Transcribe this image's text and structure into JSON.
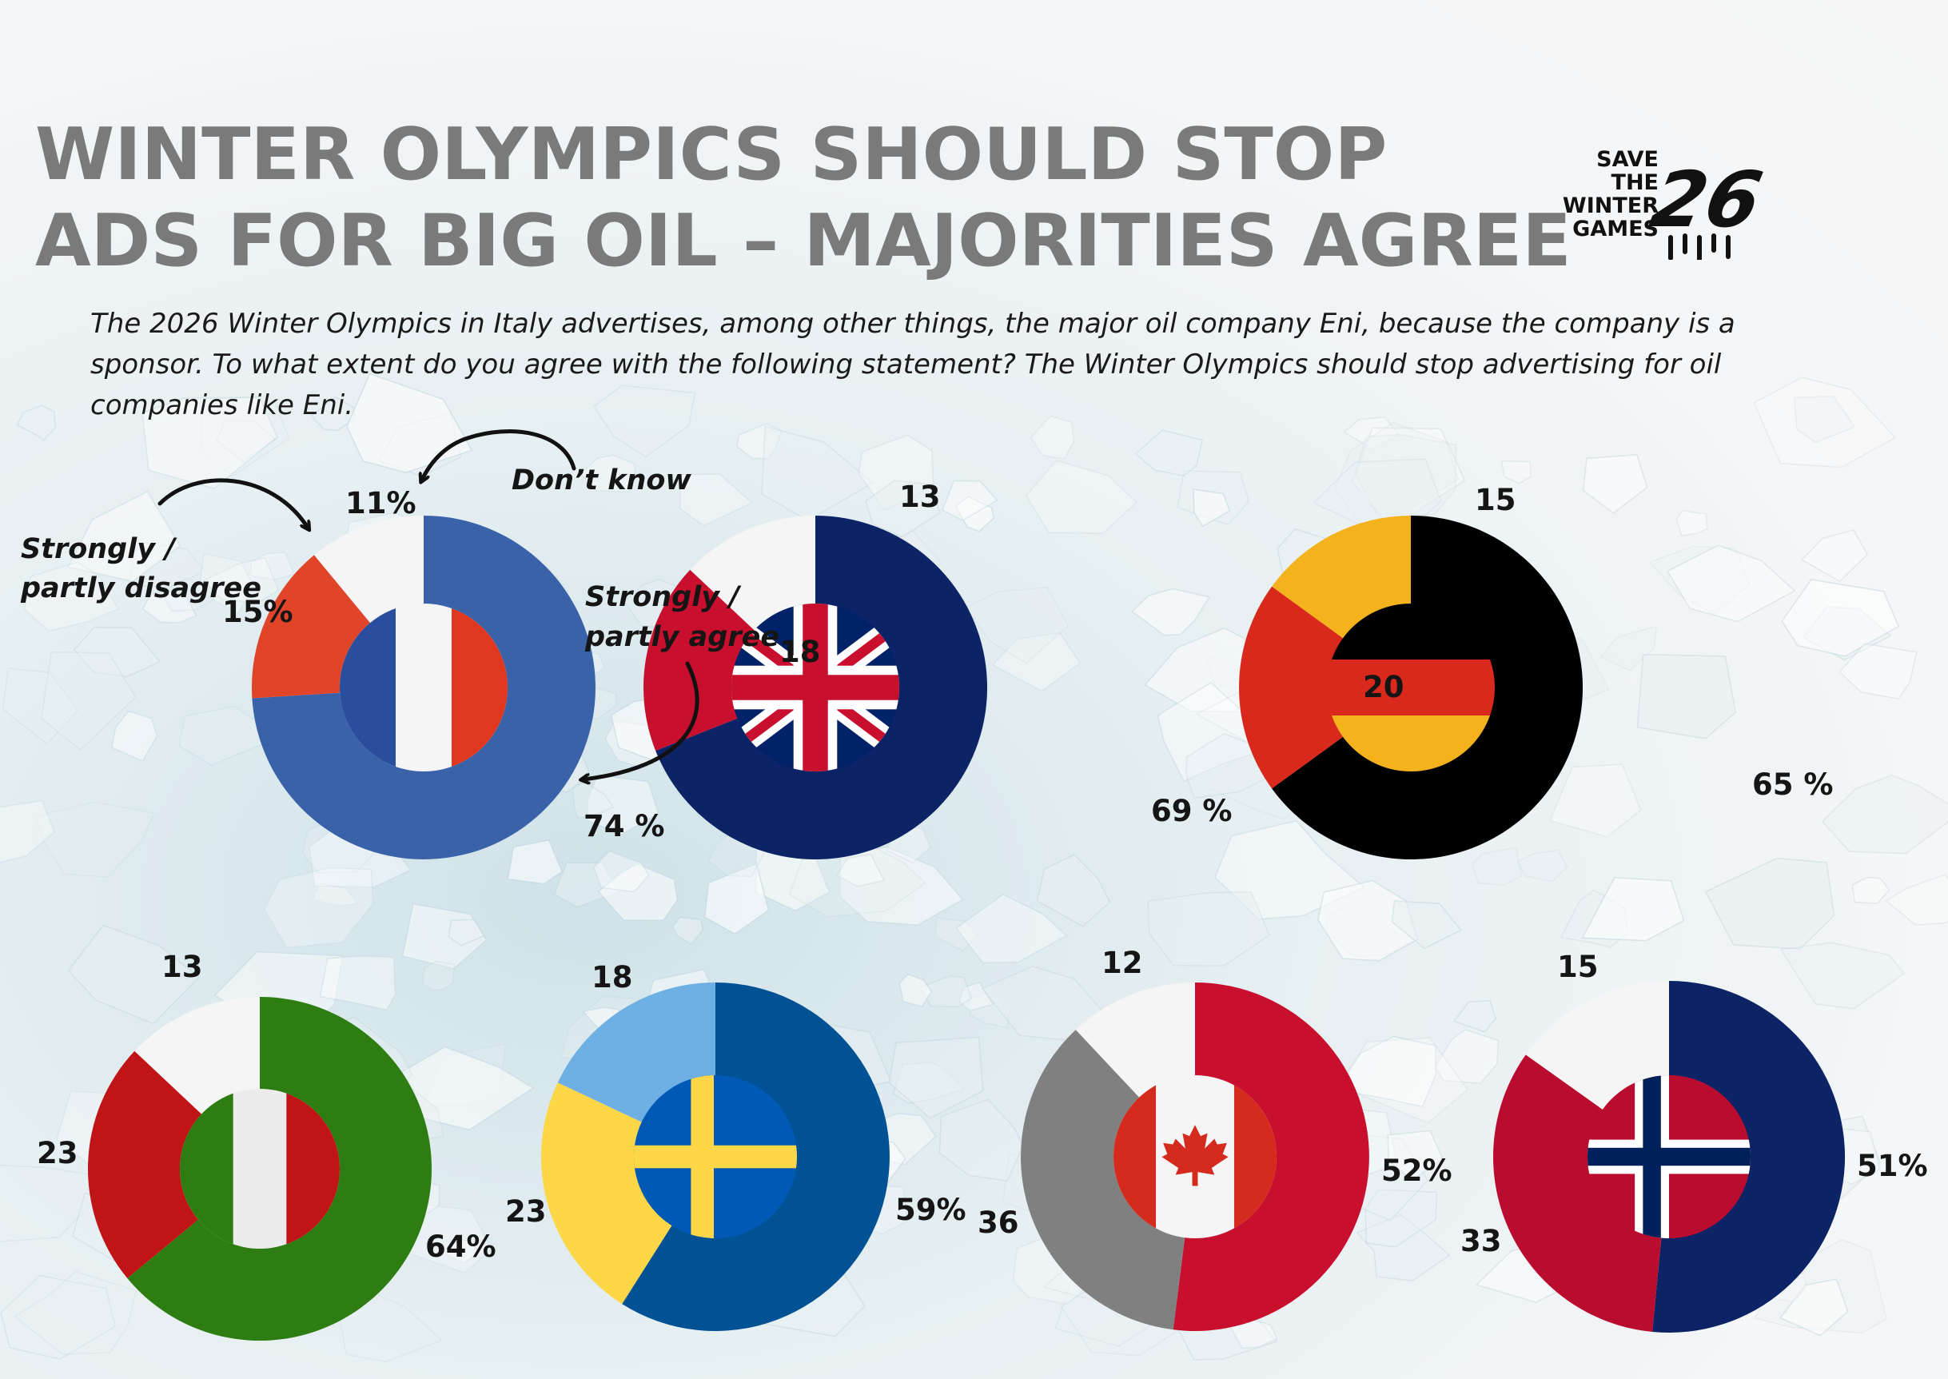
{
  "title_lines": [
    "WINTER OLYMPICS SHOULD STOP",
    "ADS FOR BIG OIL – MAJORITIES AGREE"
  ],
  "subtitle": "The 2026 Winter Olympics in Italy advertises, among other things, the major oil company Eni, because the company is a sponsor. To what extent do you agree with the following statement? The Winter Olympics should stop advertising for oil companies like Eni.",
  "logo": {
    "lines": [
      "SAVE",
      "THE",
      "WINTER",
      "GAMES"
    ],
    "mark_text": "26"
  },
  "annotations": {
    "dont_know": "Don’t know",
    "disagree_lines": [
      "Strongly  /",
      "partly disagree"
    ],
    "agree_lines": [
      "Strongly /",
      "partly agree"
    ]
  },
  "chart_data": [
    {
      "type": "pie",
      "country": "France",
      "flag": "france",
      "categories": [
        "Strongly / partly agree",
        "Strongly / partly disagree",
        "Don’t know"
      ],
      "values": [
        74,
        15,
        11
      ],
      "labels": [
        "74 %",
        "15%",
        "11%"
      ],
      "colors": [
        "#3a62a8",
        "#e0452a",
        "#f5f5f5"
      ]
    },
    {
      "type": "pie",
      "country": "United Kingdom",
      "flag": "uk",
      "categories": [
        "Strongly / partly agree",
        "Strongly / partly disagree",
        "Don’t know"
      ],
      "values": [
        69,
        18,
        13
      ],
      "labels": [
        "69 %",
        "18",
        "13"
      ],
      "colors": [
        "#0c2466",
        "#c8102e",
        "#f5f5f5"
      ]
    },
    {
      "type": "pie",
      "country": "Germany",
      "flag": "germany",
      "categories": [
        "Strongly / partly agree",
        "Strongly / partly disagree",
        "Don’t know"
      ],
      "values": [
        65,
        20,
        15
      ],
      "labels": [
        "65 %",
        "20",
        "15"
      ],
      "colors": [
        "#000000",
        "#d9281c",
        "#f4b31c"
      ]
    },
    {
      "type": "pie",
      "country": "Italy",
      "flag": "italy",
      "categories": [
        "Strongly / partly agree",
        "Strongly / partly disagree",
        "Don’t know"
      ],
      "values": [
        64,
        23,
        13
      ],
      "labels": [
        "64%",
        "23",
        "13"
      ],
      "colors": [
        "#2e7d12",
        "#c01517",
        "#f5f5f5"
      ]
    },
    {
      "type": "pie",
      "country": "Sweden",
      "flag": "sweden",
      "categories": [
        "Strongly / partly agree",
        "Strongly / partly disagree",
        "Don’t know"
      ],
      "values": [
        59,
        23,
        18
      ],
      "labels": [
        "59%",
        "23",
        "18"
      ],
      "colors": [
        "#005295",
        "#fdd747",
        "#6fb0e4"
      ]
    },
    {
      "type": "pie",
      "country": "Canada",
      "flag": "canada",
      "categories": [
        "Strongly / partly agree",
        "Strongly / partly disagree",
        "Don’t know"
      ],
      "values": [
        52,
        36,
        12
      ],
      "labels": [
        "52%",
        "36",
        "12"
      ],
      "colors": [
        "#c8102e",
        "#808080",
        "#f5f5f5"
      ]
    },
    {
      "type": "pie",
      "country": "Norway",
      "flag": "norway",
      "categories": [
        "Strongly / partly agree",
        "Strongly / partly disagree",
        "Don’t know"
      ],
      "values": [
        51,
        33,
        15
      ],
      "labels": [
        "51%",
        "33",
        "15"
      ],
      "colors": [
        "#0c2466",
        "#ba0c2f",
        "#f5f5f5"
      ]
    }
  ]
}
